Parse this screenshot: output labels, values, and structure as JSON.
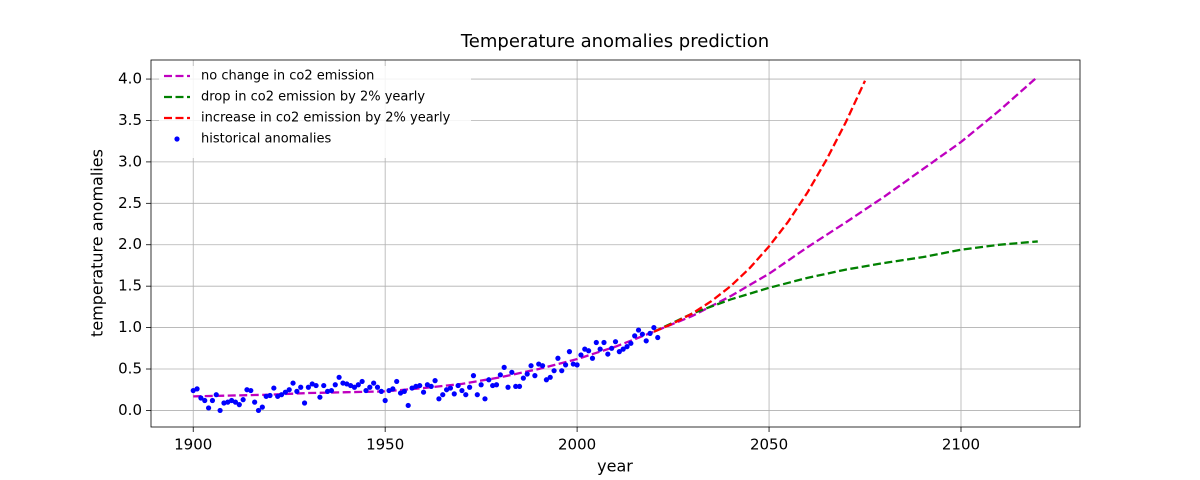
{
  "chart_data": {
    "type": "line",
    "title": "Temperature anomalies prediction",
    "x_label": "year",
    "y_label": "temperature anomalies",
    "xlim": [
      1889,
      2131
    ],
    "ylim": [
      -0.2,
      4.23
    ],
    "xticks": [
      1900,
      1950,
      2000,
      2050,
      2100
    ],
    "yticks": [
      {
        "value": 0,
        "label": "0.0"
      },
      {
        "value": 0.5,
        "label": "0.5"
      },
      {
        "value": 1,
        "label": "1.0"
      },
      {
        "value": 1.5,
        "label": "1.5"
      },
      {
        "value": 2,
        "label": "2.0"
      },
      {
        "value": 2.5,
        "label": "2.5"
      },
      {
        "value": 3,
        "label": "3.0"
      },
      {
        "value": 3.5,
        "label": "3.5"
      },
      {
        "value": 4,
        "label": "4.0"
      }
    ],
    "grid": true,
    "legend": "upper-left",
    "series": [
      {
        "name": "no change in co2 emission",
        "color": "#bf00bf",
        "style": "dashed",
        "x": [
          1900,
          1910,
          1920,
          1930,
          1940,
          1950,
          1960,
          1970,
          1980,
          1990,
          2000,
          2010,
          2020,
          2030,
          2040,
          2050,
          2060,
          2070,
          2080,
          2090,
          2100,
          2110,
          2120
        ],
        "values": [
          0.17,
          0.18,
          0.19,
          0.21,
          0.22,
          0.23,
          0.27,
          0.32,
          0.4,
          0.5,
          0.62,
          0.77,
          0.95,
          1.14,
          1.38,
          1.65,
          1.97,
          2.27,
          2.58,
          2.91,
          3.24,
          3.62,
          4.03
        ]
      },
      {
        "name": "drop in co2 emission by 2% yearly",
        "color": "#008000",
        "style": "dashed",
        "x": [
          2020,
          2030,
          2040,
          2050,
          2060,
          2070,
          2080,
          2090,
          2100,
          2110,
          2120
        ],
        "values": [
          0.95,
          1.17,
          1.34,
          1.48,
          1.6,
          1.7,
          1.78,
          1.85,
          1.94,
          2.0,
          2.04
        ]
      },
      {
        "name": "increase in co2 emission by 2% yearly",
        "color": "#ff0000",
        "style": "dashed",
        "x": [
          2020,
          2025,
          2030,
          2035,
          2040,
          2045,
          2050,
          2055,
          2060,
          2065,
          2070,
          2075
        ],
        "values": [
          0.95,
          1.05,
          1.17,
          1.32,
          1.5,
          1.72,
          1.98,
          2.28,
          2.63,
          3.03,
          3.48,
          3.98
        ]
      },
      {
        "name": "historical anomalies",
        "color": "#0000ff",
        "style": "points",
        "x": [
          1900,
          1901,
          1902,
          1903,
          1904,
          1905,
          1906,
          1907,
          1908,
          1909,
          1910,
          1911,
          1912,
          1913,
          1914,
          1915,
          1916,
          1917,
          1918,
          1919,
          1920,
          1921,
          1922,
          1923,
          1924,
          1925,
          1926,
          1927,
          1928,
          1929,
          1930,
          1931,
          1932,
          1933,
          1934,
          1935,
          1936,
          1937,
          1938,
          1939,
          1940,
          1941,
          1942,
          1943,
          1944,
          1945,
          1946,
          1947,
          1948,
          1949,
          1950,
          1951,
          1952,
          1953,
          1954,
          1955,
          1956,
          1957,
          1958,
          1959,
          1960,
          1961,
          1962,
          1963,
          1964,
          1965,
          1966,
          1967,
          1968,
          1969,
          1970,
          1971,
          1972,
          1973,
          1974,
          1975,
          1976,
          1977,
          1978,
          1979,
          1980,
          1981,
          1982,
          1983,
          1984,
          1985,
          1986,
          1987,
          1988,
          1989,
          1990,
          1991,
          1992,
          1993,
          1994,
          1995,
          1996,
          1997,
          1998,
          1999,
          2000,
          2001,
          2002,
          2003,
          2004,
          2005,
          2006,
          2007,
          2008,
          2009,
          2010,
          2011,
          2012,
          2013,
          2014,
          2015,
          2016,
          2017,
          2018,
          2019,
          2020,
          2021
        ],
        "values": [
          0.24,
          0.26,
          0.15,
          0.12,
          0.03,
          0.12,
          0.19,
          0.0,
          0.09,
          0.1,
          0.12,
          0.1,
          0.07,
          0.13,
          0.25,
          0.24,
          0.1,
          0.0,
          0.04,
          0.17,
          0.18,
          0.27,
          0.17,
          0.19,
          0.22,
          0.25,
          0.33,
          0.23,
          0.28,
          0.09,
          0.28,
          0.32,
          0.3,
          0.16,
          0.3,
          0.23,
          0.24,
          0.31,
          0.4,
          0.33,
          0.32,
          0.3,
          0.28,
          0.31,
          0.35,
          0.24,
          0.28,
          0.33,
          0.28,
          0.23,
          0.12,
          0.24,
          0.26,
          0.35,
          0.21,
          0.23,
          0.06,
          0.27,
          0.29,
          0.3,
          0.22,
          0.31,
          0.29,
          0.36,
          0.14,
          0.19,
          0.25,
          0.27,
          0.2,
          0.3,
          0.24,
          0.19,
          0.28,
          0.42,
          0.19,
          0.31,
          0.14,
          0.37,
          0.3,
          0.31,
          0.43,
          0.52,
          0.28,
          0.46,
          0.29,
          0.29,
          0.39,
          0.44,
          0.54,
          0.42,
          0.56,
          0.54,
          0.37,
          0.4,
          0.48,
          0.63,
          0.48,
          0.55,
          0.71,
          0.56,
          0.55,
          0.67,
          0.74,
          0.72,
          0.63,
          0.82,
          0.74,
          0.82,
          0.68,
          0.75,
          0.83,
          0.71,
          0.74,
          0.77,
          0.81,
          0.9,
          0.97,
          0.92,
          0.84,
          0.93,
          1.0,
          0.88
        ]
      }
    ]
  }
}
